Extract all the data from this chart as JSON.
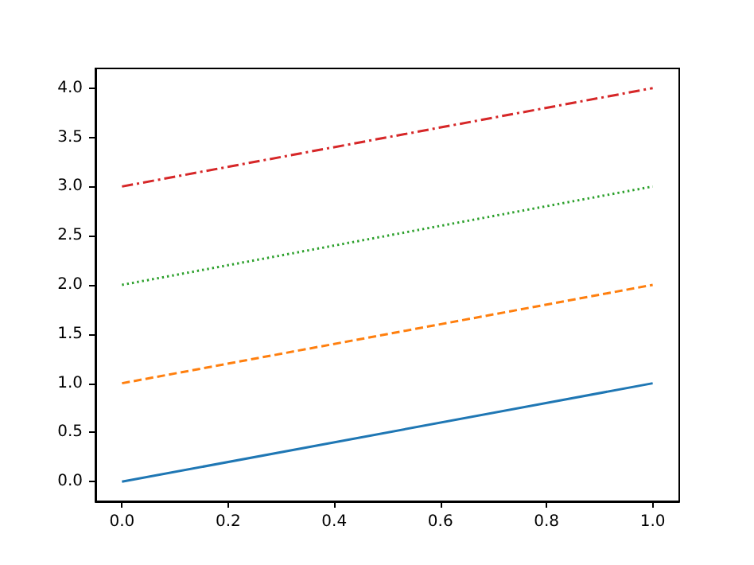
{
  "chart_data": {
    "type": "line",
    "x": [
      0,
      1
    ],
    "series": [
      {
        "color": "#1f77b4",
        "values": [
          0,
          1
        ],
        "line_style": "solid"
      },
      {
        "color": "#ff7f0e",
        "values": [
          1,
          2
        ],
        "line_style": "dashed"
      },
      {
        "color": "#2ca02c",
        "values": [
          2,
          3
        ],
        "line_style": "dotted"
      },
      {
        "color": "#d62728",
        "values": [
          3,
          4
        ],
        "line_style": "dashdot"
      }
    ],
    "marker": "none",
    "xlim": [
      -0.05,
      1.05
    ],
    "xticks": [
      {
        "value": 0,
        "label": "0.0"
      },
      {
        "value": 0.2,
        "label": "0.2"
      },
      {
        "value": 0.4,
        "label": "0.4"
      },
      {
        "value": 0.6,
        "label": "0.6"
      },
      {
        "value": 0.8,
        "label": "0.8"
      },
      {
        "value": 1,
        "label": "1.0"
      }
    ],
    "ylim": [
      -0.2,
      4.2
    ],
    "yticks": [
      {
        "value": 0,
        "label": "0.0"
      },
      {
        "value": 0.5,
        "label": "0.5"
      },
      {
        "value": 1,
        "label": "1.0"
      },
      {
        "value": 1.5,
        "label": "1.5"
      },
      {
        "value": 2,
        "label": "2.0"
      },
      {
        "value": 2.5,
        "label": "2.5"
      },
      {
        "value": 3,
        "label": "3.0"
      },
      {
        "value": 3.5,
        "label": "3.5"
      },
      {
        "value": 4,
        "label": "4.0"
      }
    ]
  }
}
